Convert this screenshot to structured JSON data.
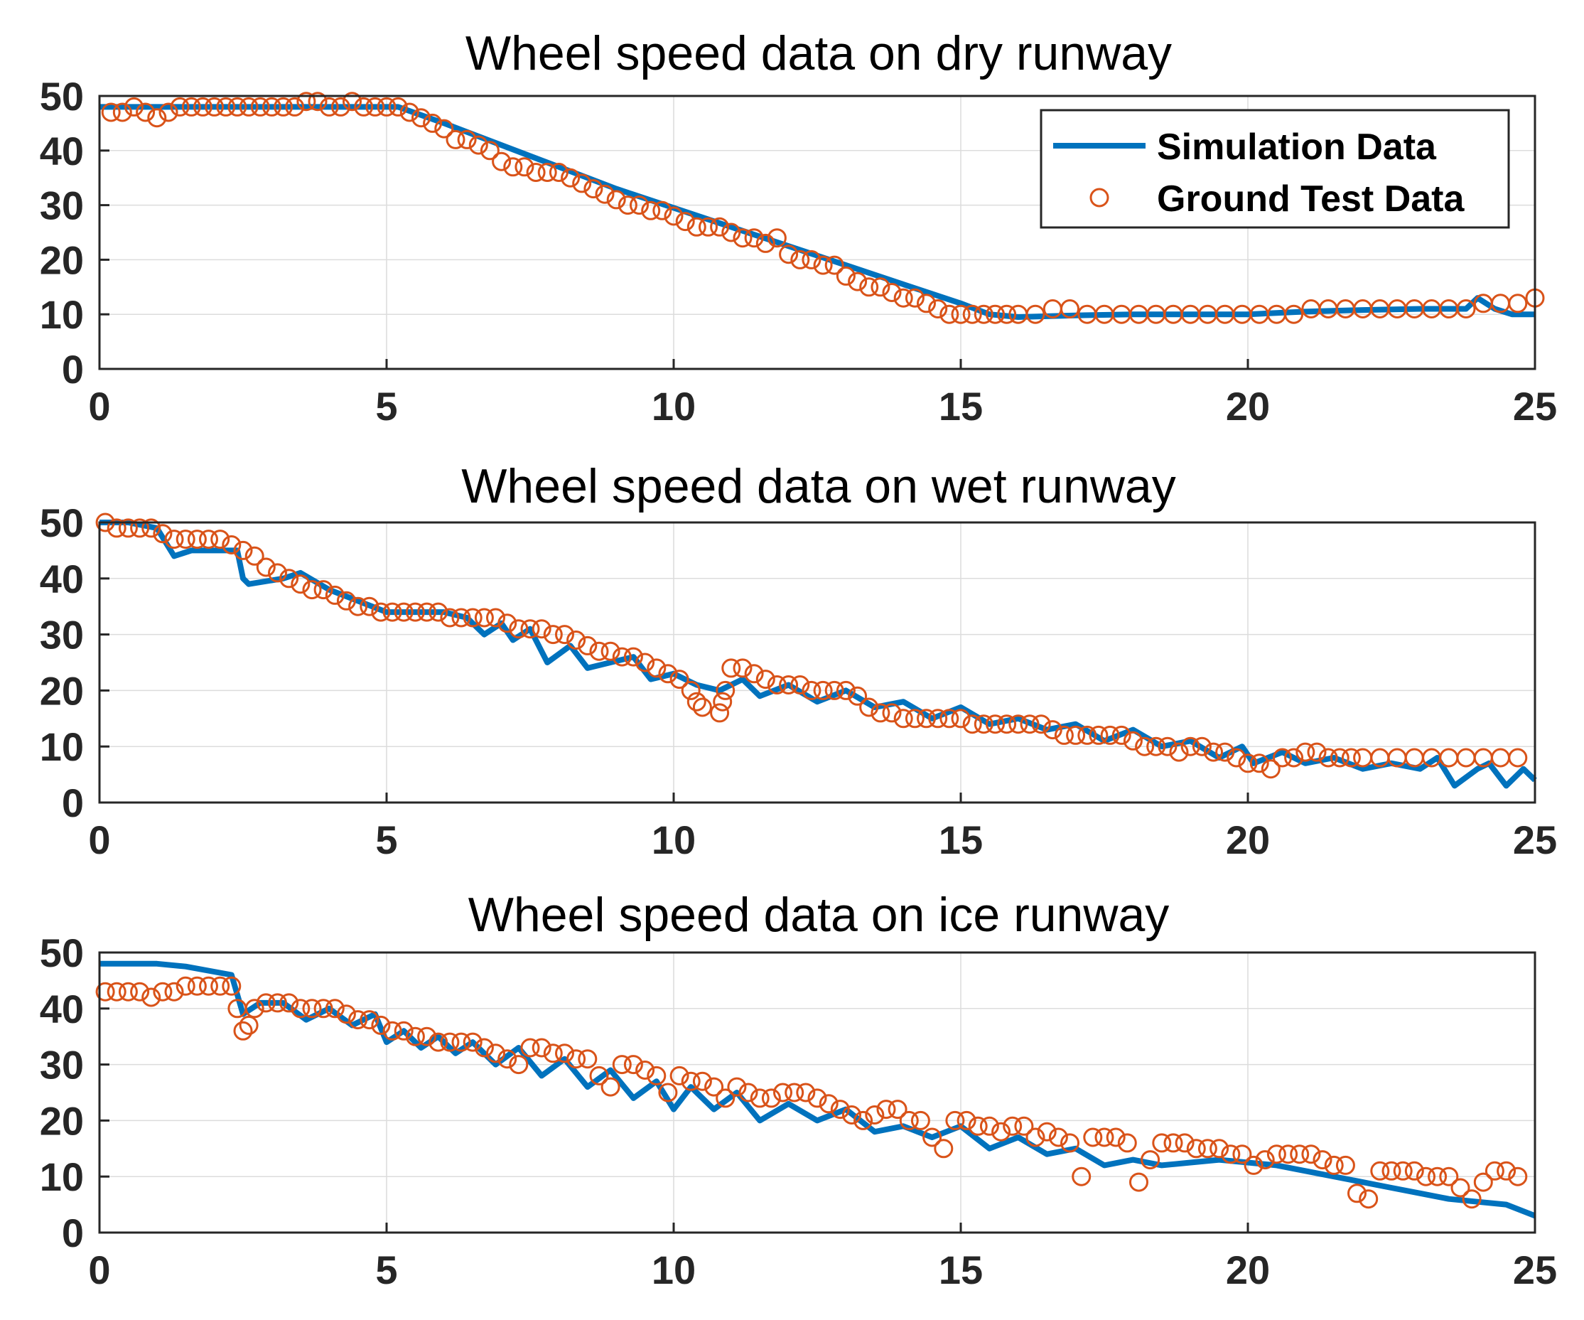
{
  "chart_data": [
    {
      "type": "line",
      "title": "Wheel speed data on dry runway",
      "xlim": [
        0,
        25
      ],
      "ylim": [
        0,
        50
      ],
      "xticks": [
        0,
        5,
        10,
        15,
        20,
        25
      ],
      "yticks": [
        0,
        10,
        20,
        30,
        40,
        50
      ],
      "grid": true,
      "legend": {
        "position": "top-right",
        "entries": [
          "Simulation Data",
          "Ground Test Data"
        ]
      },
      "series": [
        {
          "name": "Simulation Data",
          "style": "line",
          "x": [
            0,
            1,
            2,
            3,
            4,
            5,
            5.2,
            6,
            7,
            8,
            9,
            10,
            11,
            12,
            13,
            14,
            15,
            15.5,
            16,
            17,
            18,
            19,
            20,
            21,
            22,
            23,
            23.8,
            24,
            24.3,
            24.6,
            25
          ],
          "y": [
            48,
            48,
            48,
            48,
            48,
            48,
            48,
            45,
            41,
            37,
            33,
            29.5,
            26,
            22.5,
            19,
            15.5,
            12,
            10,
            9.5,
            9.8,
            10,
            10,
            10,
            10.5,
            10.8,
            11,
            11,
            13,
            11,
            10,
            10
          ]
        },
        {
          "name": "Ground Test Data",
          "style": "markers",
          "x": [
            0.2,
            0.4,
            0.6,
            0.8,
            1.0,
            1.2,
            1.4,
            1.6,
            1.8,
            2.0,
            2.2,
            2.4,
            2.6,
            2.8,
            3.0,
            3.2,
            3.4,
            3.6,
            3.8,
            4.0,
            4.2,
            4.4,
            4.6,
            4.8,
            5.0,
            5.2,
            5.4,
            5.6,
            5.8,
            6.0,
            6.2,
            6.4,
            6.6,
            6.8,
            7.0,
            7.2,
            7.4,
            7.6,
            7.8,
            8.0,
            8.2,
            8.4,
            8.6,
            8.8,
            9.0,
            9.2,
            9.4,
            9.6,
            9.8,
            10.0,
            10.2,
            10.4,
            10.6,
            10.8,
            11.0,
            11.2,
            11.4,
            11.6,
            11.8,
            12.0,
            12.2,
            12.4,
            12.6,
            12.8,
            13.0,
            13.2,
            13.4,
            13.6,
            13.8,
            14.0,
            14.2,
            14.4,
            14.6,
            14.8,
            15.0,
            15.2,
            15.4,
            15.6,
            15.8,
            16.0,
            16.3,
            16.6,
            16.9,
            17.2,
            17.5,
            17.8,
            18.1,
            18.4,
            18.7,
            19.0,
            19.3,
            19.6,
            19.9,
            20.2,
            20.5,
            20.8,
            21.1,
            21.4,
            21.7,
            22.0,
            22.3,
            22.6,
            22.9,
            23.2,
            23.5,
            23.8,
            24.1,
            24.4,
            24.7,
            25.0
          ],
          "y": [
            47,
            47,
            48,
            47,
            46,
            47,
            48,
            48,
            48,
            48,
            48,
            48,
            48,
            48,
            48,
            48,
            48,
            49,
            49,
            48,
            48,
            49,
            48,
            48,
            48,
            48,
            47,
            46,
            45,
            44,
            42,
            42,
            41,
            40,
            38,
            37,
            37,
            36,
            36,
            36,
            35,
            34,
            33,
            32,
            31,
            30,
            30,
            29,
            29,
            28,
            27,
            26,
            26,
            26,
            25,
            24,
            24,
            23,
            24,
            21,
            20,
            20,
            19,
            19,
            17,
            16,
            15,
            15,
            14,
            13,
            13,
            12,
            11,
            10,
            10,
            10,
            10,
            10,
            10,
            10,
            10,
            11,
            11,
            10,
            10,
            10,
            10,
            10,
            10,
            10,
            10,
            10,
            10,
            10,
            10,
            10,
            11,
            11,
            11,
            11,
            11,
            11,
            11,
            11,
            11,
            11,
            12,
            12,
            12,
            13
          ]
        }
      ]
    },
    {
      "type": "line",
      "title": "Wheel speed data on wet runway",
      "xlim": [
        0,
        25
      ],
      "ylim": [
        0,
        50
      ],
      "xticks": [
        0,
        5,
        10,
        15,
        20,
        25
      ],
      "yticks": [
        0,
        10,
        20,
        30,
        40,
        50
      ],
      "grid": true,
      "series": [
        {
          "name": "Simulation Data",
          "style": "line",
          "x": [
            0,
            0.5,
            1.0,
            1.3,
            1.6,
            2.4,
            2.5,
            2.6,
            3.2,
            3.5,
            4,
            5,
            6,
            6.4,
            6.7,
            7,
            7.2,
            7.5,
            7.8,
            8.2,
            8.5,
            9.3,
            9.6,
            10,
            10.4,
            10.8,
            11.2,
            11.5,
            12,
            12.5,
            13,
            13.5,
            14,
            14.5,
            15,
            15.5,
            16,
            16.5,
            17,
            17.5,
            18,
            18.5,
            19,
            19.5,
            19.9,
            20.1,
            20.6,
            21,
            21.5,
            22,
            22.5,
            23,
            23.3,
            23.6,
            24.0,
            24.2,
            24.5,
            24.8,
            25
          ],
          "y": [
            50,
            50,
            49,
            44,
            45,
            45,
            40,
            39,
            40,
            41,
            38,
            34,
            34,
            33,
            30,
            32,
            29,
            31,
            25,
            28,
            24,
            26,
            22,
            23,
            21,
            20,
            22,
            19,
            21,
            18,
            20,
            17,
            18,
            15,
            17,
            14,
            15,
            13,
            14,
            11,
            13,
            10,
            11,
            8,
            10,
            7,
            9,
            7,
            8,
            6,
            7,
            6,
            8,
            3,
            6,
            7,
            3,
            6,
            4
          ]
        },
        {
          "name": "Ground Test Data",
          "style": "markers",
          "x": [
            0.1,
            0.3,
            0.5,
            0.7,
            0.9,
            1.1,
            1.3,
            1.5,
            1.7,
            1.9,
            2.1,
            2.3,
            2.5,
            2.7,
            2.9,
            3.1,
            3.3,
            3.5,
            3.7,
            3.9,
            4.1,
            4.3,
            4.5,
            4.7,
            4.9,
            5.1,
            5.3,
            5.5,
            5.7,
            5.9,
            6.1,
            6.3,
            6.5,
            6.7,
            6.9,
            7.1,
            7.3,
            7.5,
            7.7,
            7.9,
            8.1,
            8.3,
            8.5,
            8.7,
            8.9,
            9.1,
            9.3,
            9.5,
            9.7,
            9.9,
            10.1,
            10.3,
            10.4,
            10.5,
            10.8,
            10.85,
            10.9,
            11.0,
            11.2,
            11.4,
            11.6,
            11.8,
            12.0,
            12.2,
            12.4,
            12.6,
            12.8,
            13.0,
            13.2,
            13.4,
            13.6,
            13.8,
            14.0,
            14.2,
            14.4,
            14.6,
            14.8,
            15.0,
            15.2,
            15.4,
            15.6,
            15.8,
            16.0,
            16.2,
            16.4,
            16.6,
            16.8,
            17.0,
            17.2,
            17.4,
            17.6,
            17.8,
            18.0,
            18.2,
            18.4,
            18.6,
            18.8,
            19.0,
            19.2,
            19.4,
            19.6,
            19.8,
            20.0,
            20.2,
            20.4,
            20.6,
            20.8,
            21.0,
            21.2,
            21.4,
            21.6,
            21.8,
            22.0,
            22.3,
            22.6,
            22.9,
            23.2,
            23.5,
            23.8,
            24.1,
            24.4,
            24.7
          ],
          "y": [
            50,
            49,
            49,
            49,
            49,
            48,
            47,
            47,
            47,
            47,
            47,
            46,
            45,
            44,
            42,
            41,
            40,
            39,
            38,
            38,
            37,
            36,
            35,
            35,
            34,
            34,
            34,
            34,
            34,
            34,
            33,
            33,
            33,
            33,
            33,
            32,
            31,
            31,
            31,
            30,
            30,
            29,
            28,
            27,
            27,
            26,
            26,
            25,
            24,
            23,
            22,
            20,
            18,
            17,
            16,
            18,
            20,
            24,
            24,
            23,
            22,
            21,
            21,
            21,
            20,
            20,
            20,
            20,
            19,
            17,
            16,
            16,
            15,
            15,
            15,
            15,
            15,
            15,
            14,
            14,
            14,
            14,
            14,
            14,
            14,
            13,
            12,
            12,
            12,
            12,
            12,
            12,
            11,
            10,
            10,
            10,
            9,
            10,
            10,
            9,
            9,
            8,
            7,
            7,
            6,
            8,
            8,
            9,
            9,
            8,
            8,
            8,
            8,
            8,
            8,
            8,
            8,
            8,
            8,
            8,
            8,
            8
          ]
        }
      ]
    },
    {
      "type": "line",
      "title": "Wheel speed data on ice runway",
      "xlim": [
        0,
        25
      ],
      "ylim": [
        0,
        50
      ],
      "xticks": [
        0,
        5,
        10,
        15,
        20,
        25
      ],
      "yticks": [
        0,
        10,
        20,
        30,
        40,
        50
      ],
      "grid": true,
      "series": [
        {
          "name": "Simulation Data",
          "style": "line",
          "x": [
            0,
            1,
            1.5,
            2.3,
            2.5,
            2.8,
            3.2,
            3.6,
            4.0,
            4.4,
            4.8,
            5.0,
            5.3,
            5.6,
            5.9,
            6.2,
            6.5,
            6.9,
            7.3,
            7.7,
            8.1,
            8.5,
            8.9,
            9.3,
            9.7,
            10.0,
            10.3,
            10.7,
            11.1,
            11.5,
            12.0,
            12.5,
            13.0,
            13.5,
            14.0,
            14.5,
            15.0,
            15.5,
            16.0,
            16.5,
            17.0,
            17.5,
            18.0,
            18.5,
            19.0,
            19.5,
            20.0,
            20.5,
            21.0,
            21.5,
            22.0,
            22.5,
            23.0,
            23.5,
            24.0,
            24.5,
            25
          ],
          "y": [
            48,
            48,
            47.5,
            46,
            39,
            41,
            41,
            38,
            40,
            37,
            39,
            34,
            36,
            33,
            35,
            32,
            34,
            30,
            33,
            28,
            31,
            26,
            29,
            24,
            27,
            22,
            26,
            22,
            25,
            20,
            23,
            20,
            22,
            18,
            19,
            17,
            19,
            15,
            17,
            14,
            15,
            12,
            13,
            12,
            12.5,
            13,
            12.5,
            12,
            11,
            10,
            9,
            8,
            7,
            6,
            5.5,
            5,
            3
          ]
        },
        {
          "name": "Ground Test Data",
          "style": "markers",
          "x": [
            0.1,
            0.3,
            0.5,
            0.7,
            0.9,
            1.1,
            1.3,
            1.5,
            1.7,
            1.9,
            2.1,
            2.3,
            2.4,
            2.5,
            2.6,
            2.7,
            2.9,
            3.1,
            3.3,
            3.5,
            3.7,
            3.9,
            4.1,
            4.3,
            4.5,
            4.7,
            4.9,
            5.1,
            5.3,
            5.5,
            5.7,
            5.9,
            6.1,
            6.3,
            6.5,
            6.7,
            6.9,
            7.1,
            7.3,
            7.5,
            7.7,
            7.9,
            8.1,
            8.3,
            8.5,
            8.7,
            8.9,
            9.1,
            9.3,
            9.5,
            9.7,
            9.9,
            10.1,
            10.3,
            10.5,
            10.7,
            10.9,
            11.1,
            11.3,
            11.5,
            11.7,
            11.9,
            12.1,
            12.3,
            12.5,
            12.7,
            12.9,
            13.1,
            13.3,
            13.5,
            13.7,
            13.9,
            14.1,
            14.3,
            14.5,
            14.7,
            14.9,
            15.1,
            15.3,
            15.5,
            15.7,
            15.9,
            16.1,
            16.3,
            16.5,
            16.7,
            16.9,
            17.1,
            17.3,
            17.5,
            17.7,
            17.9,
            18.1,
            18.3,
            18.5,
            18.7,
            18.9,
            19.1,
            19.3,
            19.5,
            19.7,
            19.9,
            20.1,
            20.3,
            20.5,
            20.7,
            20.9,
            21.1,
            21.3,
            21.5,
            21.7,
            21.9,
            22.1,
            22.3,
            22.5,
            22.7,
            22.9,
            23.1,
            23.3,
            23.5,
            23.7,
            23.9,
            24.1,
            24.3,
            24.5,
            24.7
          ],
          "y": [
            43,
            43,
            43,
            43,
            42,
            43,
            43,
            44,
            44,
            44,
            44,
            44,
            40,
            36,
            37,
            40,
            41,
            41,
            41,
            40,
            40,
            40,
            40,
            39,
            38,
            38,
            37,
            36,
            36,
            35,
            35,
            34,
            34,
            34,
            34,
            33,
            32,
            31,
            30,
            33,
            33,
            32,
            32,
            31,
            31,
            28,
            26,
            30,
            30,
            29,
            28,
            25,
            28,
            27,
            27,
            26,
            24,
            26,
            25,
            24,
            24,
            25,
            25,
            25,
            24,
            23,
            22,
            21,
            20,
            21,
            22,
            22,
            20,
            20,
            17,
            15,
            20,
            20,
            19,
            19,
            18,
            19,
            19,
            17,
            18,
            17,
            16,
            10,
            17,
            17,
            17,
            16,
            9,
            13,
            16,
            16,
            16,
            15,
            15,
            15,
            14,
            14,
            12,
            13,
            14,
            14,
            14,
            14,
            13,
            12,
            12,
            7,
            6,
            11,
            11,
            11,
            11,
            10,
            10,
            10,
            8,
            6,
            9,
            11,
            11,
            10
          ]
        }
      ]
    }
  ]
}
